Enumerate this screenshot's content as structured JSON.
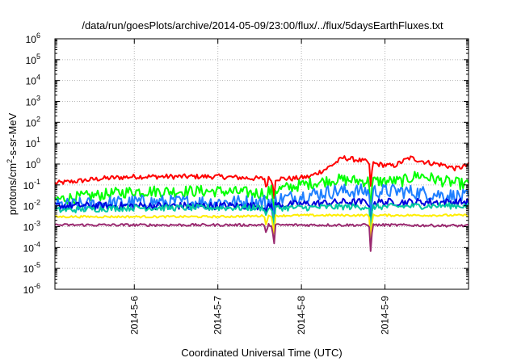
{
  "chart_data": {
    "type": "line",
    "title": "/data/run/goesPlots/archive/2014-05-09/23:00/flux/../flux/5daysEarthFluxes.txt",
    "xlabel": "Coordinated Universal Time (UTC)",
    "ylabel": "protons/cm²-s-sr-MeV",
    "ylabel_parts": {
      "pre": "protons/cm",
      "sup": "2",
      "post": "-s-sr-MeV"
    },
    "yscale": "log",
    "ylim_exp": [
      -6,
      6
    ],
    "y_tick_labels": [
      {
        "base": "10",
        "exp": "-6"
      },
      {
        "base": "10",
        "exp": "-5"
      },
      {
        "base": "10",
        "exp": "-4"
      },
      {
        "base": "10",
        "exp": "-3"
      },
      {
        "base": "10",
        "exp": "-2"
      },
      {
        "base": "10",
        "exp": "-1"
      },
      {
        "base": "10",
        "exp": "0"
      },
      {
        "base": "10",
        "exp": "1"
      },
      {
        "base": "10",
        "exp": "2"
      },
      {
        "base": "10",
        "exp": "3"
      },
      {
        "base": "10",
        "exp": "4"
      },
      {
        "base": "10",
        "exp": "5"
      },
      {
        "base": "10",
        "exp": "6"
      }
    ],
    "x_range_days": [
      5.05,
      10.0
    ],
    "x_ticks": [
      {
        "day": 6,
        "label": "2014-5-6"
      },
      {
        "day": 7,
        "label": "2014-5-7"
      },
      {
        "day": 8,
        "label": "2014-5-8"
      },
      {
        "day": 9,
        "label": "2014-5-9"
      }
    ],
    "grid": true,
    "series": [
      {
        "color": "#ff0000",
        "points": [
          [
            5.05,
            0.12
          ],
          [
            5.3,
            0.15
          ],
          [
            5.6,
            0.2
          ],
          [
            6.0,
            0.25
          ],
          [
            6.5,
            0.25
          ],
          [
            7.0,
            0.25
          ],
          [
            7.5,
            0.2
          ],
          [
            7.9,
            0.2
          ],
          [
            8.1,
            0.25
          ],
          [
            8.3,
            0.6
          ],
          [
            8.5,
            2.0
          ],
          [
            8.7,
            1.5
          ],
          [
            8.9,
            1.0
          ],
          [
            9.1,
            0.8
          ],
          [
            9.3,
            2.0
          ],
          [
            9.5,
            1.2
          ],
          [
            9.7,
            0.9
          ],
          [
            9.85,
            0.6
          ],
          [
            10.0,
            0.9
          ]
        ],
        "noise": 0.12
      },
      {
        "color": "#00ff00",
        "points": [
          [
            5.05,
            0.02
          ],
          [
            5.5,
            0.03
          ],
          [
            6.0,
            0.05
          ],
          [
            6.5,
            0.05
          ],
          [
            7.0,
            0.05
          ],
          [
            7.5,
            0.04
          ],
          [
            8.0,
            0.1
          ],
          [
            8.4,
            0.18
          ],
          [
            8.8,
            0.15
          ],
          [
            9.2,
            0.15
          ],
          [
            9.4,
            0.3
          ],
          [
            9.7,
            0.15
          ],
          [
            10.0,
            0.1
          ]
        ],
        "noise": 0.28
      },
      {
        "color": "#1e7fff",
        "points": [
          [
            5.05,
            0.01
          ],
          [
            5.5,
            0.012
          ],
          [
            6.0,
            0.015
          ],
          [
            6.5,
            0.015
          ],
          [
            7.0,
            0.015
          ],
          [
            7.5,
            0.015
          ],
          [
            8.0,
            0.03
          ],
          [
            8.4,
            0.05
          ],
          [
            8.8,
            0.05
          ],
          [
            9.2,
            0.05
          ],
          [
            9.5,
            0.04
          ],
          [
            10.0,
            0.025
          ]
        ],
        "noise": 0.35
      },
      {
        "color": "#0000dd",
        "points": [
          [
            5.05,
            0.01
          ],
          [
            5.5,
            0.01
          ],
          [
            6.0,
            0.01
          ],
          [
            6.5,
            0.01
          ],
          [
            7.0,
            0.01
          ],
          [
            7.5,
            0.01
          ],
          [
            8.0,
            0.012
          ],
          [
            8.5,
            0.015
          ],
          [
            9.0,
            0.015
          ],
          [
            9.5,
            0.015
          ],
          [
            10.0,
            0.015
          ]
        ],
        "noise": 0.18
      },
      {
        "color": "#00c8a0",
        "points": [
          [
            5.05,
            0.006
          ],
          [
            5.5,
            0.007
          ],
          [
            6.0,
            0.008
          ],
          [
            6.5,
            0.008
          ],
          [
            7.0,
            0.008
          ],
          [
            7.5,
            0.008
          ],
          [
            8.0,
            0.008
          ],
          [
            8.5,
            0.009
          ],
          [
            9.0,
            0.009
          ],
          [
            9.5,
            0.01
          ],
          [
            10.0,
            0.01
          ]
        ],
        "noise": 0.15
      },
      {
        "color": "#ffee00",
        "points": [
          [
            5.05,
            0.003
          ],
          [
            6.0,
            0.003
          ],
          [
            7.0,
            0.003
          ],
          [
            8.0,
            0.0035
          ],
          [
            9.0,
            0.0035
          ],
          [
            10.0,
            0.0035
          ]
        ],
        "noise": 0.05
      },
      {
        "color": "#9a2a70",
        "points": [
          [
            5.05,
            0.0012
          ],
          [
            6.0,
            0.0012
          ],
          [
            7.0,
            0.0012
          ],
          [
            8.0,
            0.0012
          ],
          [
            9.0,
            0.0012
          ],
          [
            10.0,
            0.0011
          ]
        ],
        "noise": 0.06
      }
    ],
    "dips": [
      {
        "day": 7.58,
        "factor": 0.3
      },
      {
        "day": 7.67,
        "factor": 0.08
      },
      {
        "day": 8.83,
        "factor": 0.05
      }
    ]
  }
}
